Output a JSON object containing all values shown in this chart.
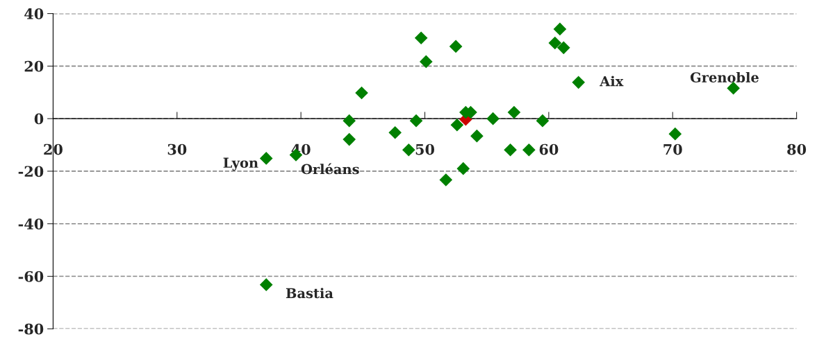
{
  "chart_data": {
    "type": "scatter",
    "marker": "diamond",
    "grid": "y",
    "legend": false,
    "xlim": [
      20,
      80
    ],
    "xticks": [
      20,
      30,
      40,
      50,
      60,
      70,
      80
    ],
    "ylim": [
      -80,
      40
    ],
    "yticks": [
      -80,
      -60,
      -40,
      -20,
      0,
      20,
      40
    ],
    "series": [
      {
        "color": "#008000",
        "x": [
          37.2,
          39.6,
          37.2,
          43.9,
          43.9,
          44.9,
          47.6,
          48.7,
          49.3,
          49.7,
          50.1,
          51.7,
          52.5,
          52.6,
          53.1,
          53.3,
          53.7,
          54.2,
          55.5,
          56.9,
          57.2,
          58.4,
          59.5,
          60.5,
          60.9,
          61.2,
          62.4,
          70.2,
          74.9
        ],
        "values": [
          -15.1,
          -13.8,
          -63.2,
          -0.8,
          -7.9,
          9.8,
          -5.3,
          -11.9,
          -0.8,
          30.7,
          21.7,
          -23.3,
          27.5,
          -2.4,
          -19.0,
          2.4,
          2.4,
          -6.6,
          0,
          -11.9,
          2.4,
          -11.9,
          -0.8,
          28.8,
          34.1,
          27.0,
          13.8,
          -5.8,
          11.6
        ]
      },
      {
        "color": "#cc0000",
        "x": [
          53.3
        ],
        "values": [
          -0.3
        ]
      }
    ],
    "annotations": [
      {
        "text": "Lyon",
        "x": 37.2,
        "y": -15.1
      },
      {
        "text": "Orléans",
        "x": 39.6,
        "y": -13.8
      },
      {
        "text": "Bastia",
        "x": 37.2,
        "y": -63.2
      },
      {
        "text": "Aix",
        "x": 62.4,
        "y": 13.8
      },
      {
        "text": "Grenoble",
        "x": 74.9,
        "y": 11.6
      }
    ]
  }
}
